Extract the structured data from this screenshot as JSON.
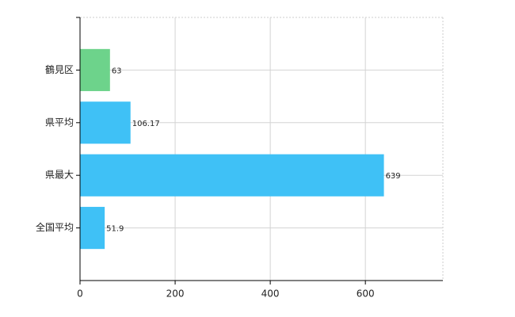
{
  "chart_data": {
    "type": "bar",
    "orientation": "horizontal",
    "categories": [
      "鶴見区",
      "県平均",
      "県最大",
      "全国平均"
    ],
    "values": [
      63,
      106.17,
      639,
      51.9
    ],
    "colors": [
      "#6dd38b",
      "#3fc1f6",
      "#3fc1f6",
      "#3fc1f6"
    ],
    "xlim": [
      0,
      763
    ],
    "xticks": [
      0,
      200,
      400,
      600
    ],
    "grid": true
  }
}
